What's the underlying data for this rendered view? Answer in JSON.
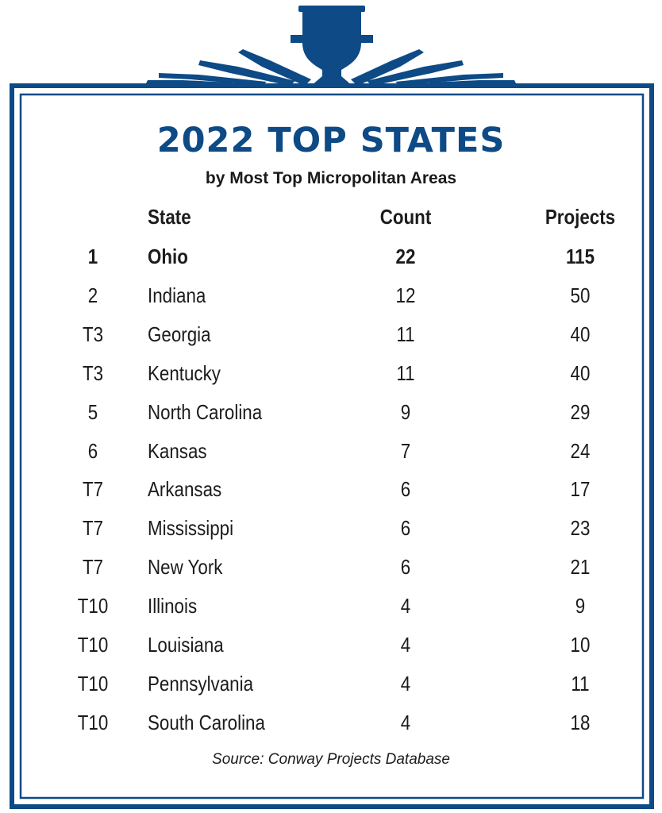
{
  "colors": {
    "brand_blue": "#0d4a86",
    "text": "#1c1c1c"
  },
  "title": "2022 TOP STATES",
  "subtitle": "by Most Top Micropolitan Areas",
  "source": "Source: Conway Projects Database",
  "chart_data": {
    "type": "table",
    "title": "2022 TOP STATES",
    "subtitle": "by Most Top Micropolitan Areas",
    "columns": [
      "",
      "State",
      "Count",
      "Projects"
    ],
    "rows": [
      {
        "rank": "1",
        "state": "Ohio",
        "count": "22",
        "projects": "115"
      },
      {
        "rank": "2",
        "state": "Indiana",
        "count": "12",
        "projects": "50"
      },
      {
        "rank": "T3",
        "state": "Georgia",
        "count": "11",
        "projects": "40"
      },
      {
        "rank": "T3",
        "state": "Kentucky",
        "count": "11",
        "projects": "40"
      },
      {
        "rank": "5",
        "state": "North Carolina",
        "count": "9",
        "projects": "29"
      },
      {
        "rank": "6",
        "state": "Kansas",
        "count": "7",
        "projects": "24"
      },
      {
        "rank": "T7",
        "state": "Arkansas",
        "count": "6",
        "projects": "17"
      },
      {
        "rank": "T7",
        "state": "Mississippi",
        "count": "6",
        "projects": "23"
      },
      {
        "rank": "T7",
        "state": "New York",
        "count": "6",
        "projects": "21"
      },
      {
        "rank": "T10",
        "state": "Illinois",
        "count": "4",
        "projects": "9"
      },
      {
        "rank": "T10",
        "state": "Louisiana",
        "count": "4",
        "projects": "10"
      },
      {
        "rank": "T10",
        "state": "Pennsylvania",
        "count": "4",
        "projects": "11"
      },
      {
        "rank": "T10",
        "state": "South Carolina",
        "count": "4",
        "projects": "18"
      }
    ],
    "source": "Source: Conway Projects Database"
  }
}
